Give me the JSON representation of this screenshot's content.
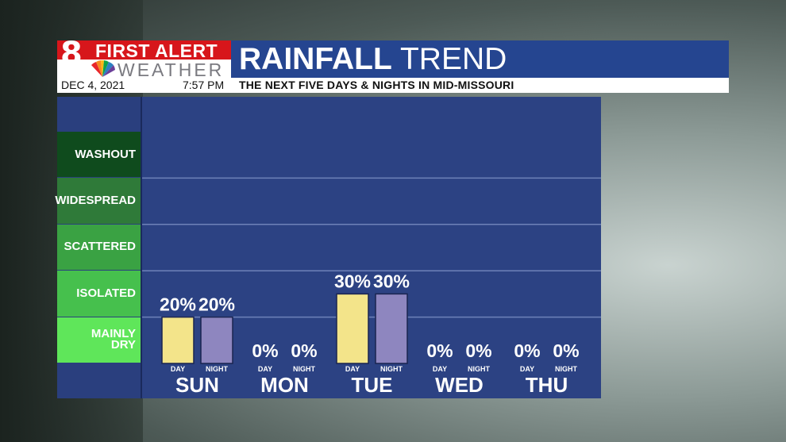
{
  "header": {
    "logo_number": "8",
    "logo_line1": "FIRST ALERT",
    "logo_line2": "WEATHER",
    "title_bold": "RAINFALL",
    "title_light": "TREND",
    "date": "DEC 4, 2021",
    "time": "7:57 PM",
    "subtitle": "THE NEXT FIVE DAYS & NIGHTS IN MID-MISSOURI"
  },
  "categories": [
    {
      "label": "WASHOUT",
      "color": "#0f4b1d"
    },
    {
      "label": "WIDESPREAD",
      "color": "#2f7a39"
    },
    {
      "label": "SCATTERED",
      "color": "#3aa243"
    },
    {
      "label": "ISOLATED",
      "color": "#46c04d"
    },
    {
      "label": "MAINLY DRY",
      "color": "#5fe65a"
    }
  ],
  "chart_data": {
    "type": "bar",
    "categories": [
      "SUN",
      "MON",
      "TUE",
      "WED",
      "THU"
    ],
    "sub_labels": [
      "DAY",
      "NIGHT"
    ],
    "series": [
      {
        "name": "DAY",
        "values": [
          20,
          0,
          30,
          0,
          0
        ],
        "color": "#f3e48a"
      },
      {
        "name": "NIGHT",
        "values": [
          20,
          0,
          30,
          0,
          0
        ],
        "color": "#8e86bf"
      }
    ],
    "value_labels": [
      [
        "20%",
        "20%"
      ],
      [
        "0%",
        "0%"
      ],
      [
        "30%",
        "30%"
      ],
      [
        "0%",
        "0%"
      ],
      [
        "0%",
        "0%"
      ]
    ],
    "ylim": [
      0,
      100
    ]
  }
}
